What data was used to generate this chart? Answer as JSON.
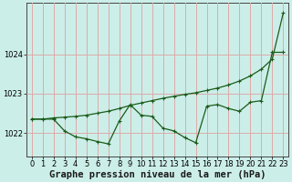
{
  "xlabel": "Graphe pression niveau de la mer (hPa)",
  "background_color": "#cceee8",
  "grid_color": "#ddaaaa",
  "line_color": "#1a5c1a",
  "ylim": [
    1021.4,
    1025.3
  ],
  "xlim": [
    -0.5,
    23.5
  ],
  "yticks": [
    1022,
    1023,
    1024
  ],
  "xticks": [
    0,
    1,
    2,
    3,
    4,
    5,
    6,
    7,
    8,
    9,
    10,
    11,
    12,
    13,
    14,
    15,
    16,
    17,
    18,
    19,
    20,
    21,
    22,
    23
  ],
  "series1_x": [
    0,
    1,
    2,
    3,
    4,
    5,
    6,
    7,
    8,
    9,
    10,
    11,
    12,
    13,
    14,
    15,
    16,
    17,
    18,
    19,
    20,
    21,
    22,
    23
  ],
  "series1_y": [
    1022.35,
    1022.35,
    1022.35,
    1022.05,
    1021.9,
    1021.85,
    1021.78,
    1021.72,
    1022.3,
    1022.72,
    1022.45,
    1022.42,
    1022.12,
    1022.05,
    1021.88,
    1021.75,
    1022.68,
    1022.72,
    1022.62,
    1022.55,
    1022.78,
    1022.82,
    1024.05,
    1024.05
  ],
  "series2_x": [
    0,
    1,
    2,
    3,
    4,
    5,
    6,
    7,
    8,
    9,
    10,
    11,
    12,
    13,
    14,
    15,
    16,
    17,
    18,
    19,
    20,
    21,
    22,
    23
  ],
  "series2_y": [
    1022.35,
    1022.35,
    1022.38,
    1022.4,
    1022.42,
    1022.45,
    1022.5,
    1022.55,
    1022.62,
    1022.7,
    1022.76,
    1022.82,
    1022.88,
    1022.93,
    1022.98,
    1023.02,
    1023.08,
    1023.14,
    1023.22,
    1023.32,
    1023.45,
    1023.62,
    1023.88,
    1025.05
  ],
  "marker": "+",
  "markersize": 3,
  "linewidth": 0.9,
  "xlabel_fontsize": 7.5,
  "xlabel_fontweight": "bold",
  "tick_fontsize": 6,
  "ylabel_fontsize": 6
}
